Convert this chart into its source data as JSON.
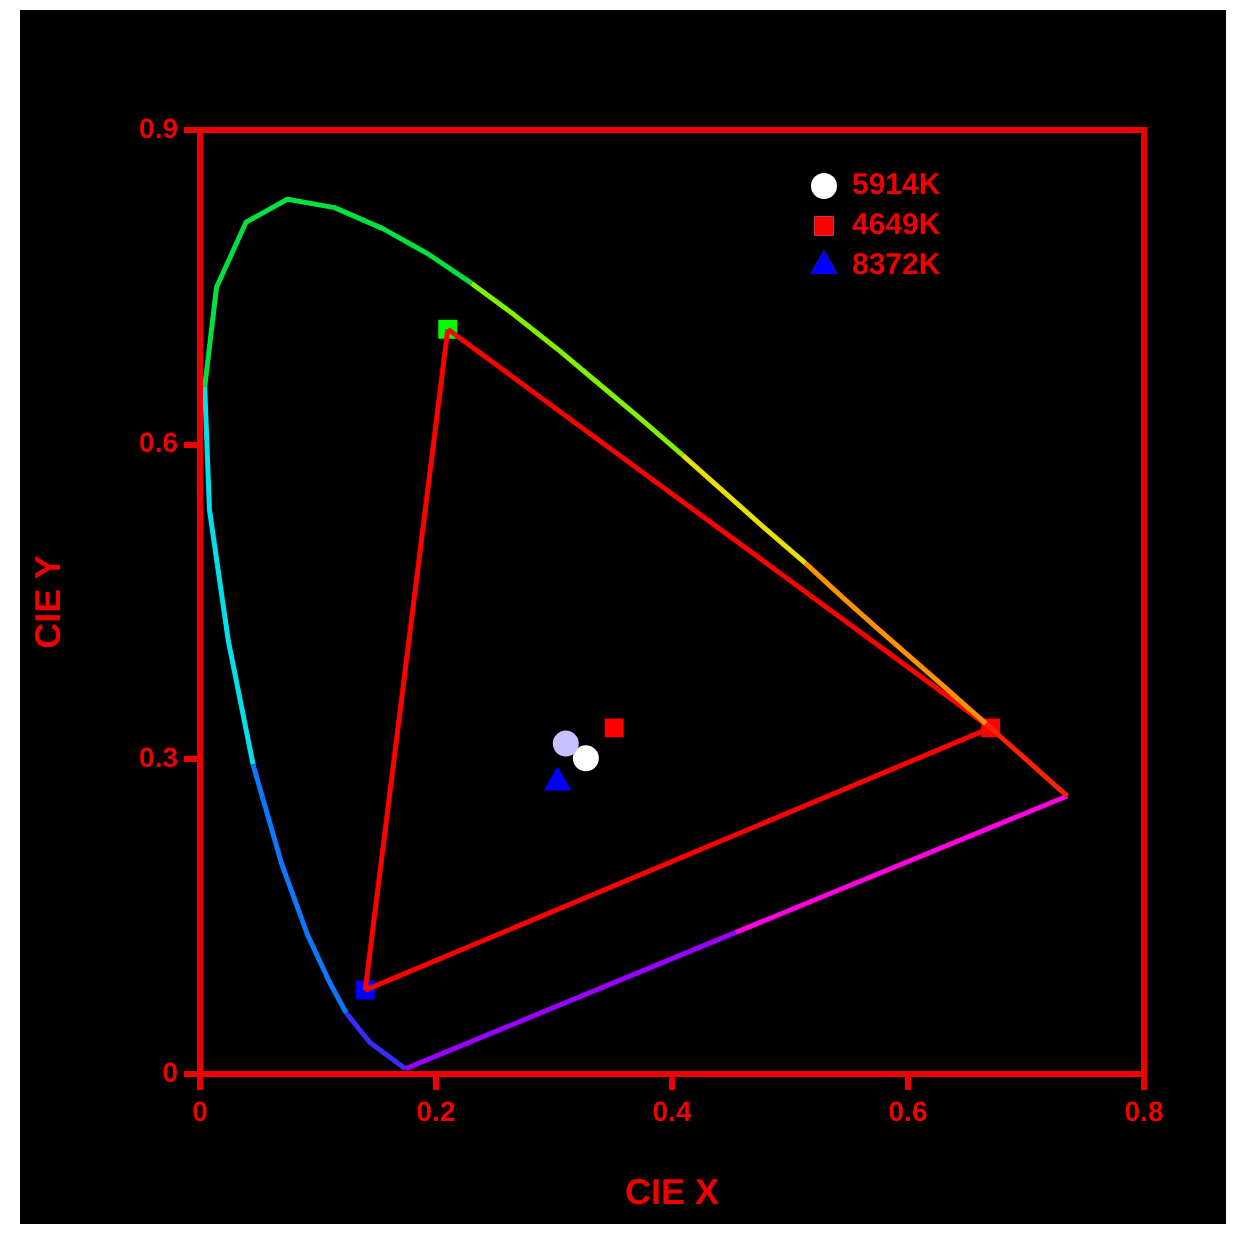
{
  "chart_data": {
    "type": "scatter",
    "xlabel": "CIE X",
    "ylabel": "CIE Y",
    "xlim": [
      0,
      0.8
    ],
    "ylim": [
      0,
      0.9
    ],
    "xticks": [
      0,
      0.2,
      0.4,
      0.6,
      0.8
    ],
    "yticks": [
      0,
      0.3,
      0.6,
      0.9
    ],
    "grid": false,
    "legend": "top right",
    "series": [
      {
        "type": "line",
        "marker": "none",
        "color": "#3a2cff",
        "x": [
          0.174,
          0.144,
          0.124
        ],
        "values": [
          0.005,
          0.03,
          0.058
        ]
      },
      {
        "type": "line",
        "marker": "none",
        "color": "#0a78ff",
        "x": [
          0.124,
          0.11,
          0.091,
          0.069,
          0.045
        ],
        "values": [
          0.058,
          0.087,
          0.133,
          0.201,
          0.295
        ]
      },
      {
        "type": "line",
        "marker": "none",
        "color": "#00e0e8",
        "x": [
          0.045,
          0.024,
          0.008,
          0.004
        ],
        "values": [
          0.295,
          0.413,
          0.538,
          0.655
        ]
      },
      {
        "type": "line",
        "marker": "none",
        "color": "#00e040",
        "x": [
          0.004,
          0.014,
          0.039,
          0.074,
          0.114,
          0.155,
          0.193,
          0.23
        ],
        "values": [
          0.655,
          0.75,
          0.812,
          0.834,
          0.826,
          0.806,
          0.782,
          0.754
        ]
      },
      {
        "type": "line",
        "marker": "none",
        "color": "#80f000",
        "x": [
          0.23,
          0.266,
          0.302,
          0.337,
          0.373,
          0.409
        ],
        "values": [
          0.754,
          0.724,
          0.692,
          0.659,
          0.625,
          0.59
        ]
      },
      {
        "type": "line",
        "marker": "none",
        "color": "#e8e000",
        "x": [
          0.409,
          0.444,
          0.479,
          0.513
        ],
        "values": [
          0.59,
          0.555,
          0.52,
          0.487
        ]
      },
      {
        "type": "line",
        "marker": "none",
        "color": "#ff9000",
        "x": [
          0.513,
          0.545,
          0.575,
          0.627,
          0.666
        ],
        "values": [
          0.487,
          0.454,
          0.424,
          0.373,
          0.334
        ]
      },
      {
        "type": "line",
        "marker": "none",
        "color": "#ff2000",
        "x": [
          0.666,
          0.692,
          0.719,
          0.735
        ],
        "values": [
          0.334,
          0.308,
          0.281,
          0.265
        ]
      },
      {
        "type": "line",
        "marker": "none",
        "color": "#ff00e0",
        "x": [
          0.735,
          0.454
        ],
        "values": [
          0.265,
          0.135
        ]
      },
      {
        "type": "line",
        "marker": "none",
        "color": "#9a00ff",
        "x": [
          0.454,
          0.174
        ],
        "values": [
          0.135,
          0.005
        ]
      },
      {
        "type": "line",
        "marker": "none",
        "color": "#ff0000",
        "x": [
          0.21,
          0.67
        ],
        "values": [
          0.71,
          0.33
        ]
      },
      {
        "type": "line",
        "marker": "none",
        "color": "#ff0000",
        "x": [
          0.14,
          0.67
        ],
        "values": [
          0.08,
          0.33
        ]
      },
      {
        "type": "line",
        "marker": "none",
        "color": "#ff0000",
        "x": [
          0.14,
          0.21
        ],
        "values": [
          0.08,
          0.71
        ]
      },
      {
        "marker": "square",
        "colors": [
          "#00ff00",
          "#ff0000",
          "#0000ff"
        ],
        "x": [
          0.21,
          0.67,
          0.14
        ],
        "values": [
          0.71,
          0.33,
          0.08
        ]
      },
      {
        "marker": "circle",
        "color": "#c8c0ff",
        "x": [
          0.31
        ],
        "values": [
          0.315
        ]
      },
      {
        "name": "5914K",
        "marker": "circle",
        "color": "#ffffff",
        "x": [
          0.327
        ],
        "values": [
          0.301
        ]
      },
      {
        "name": "4649K",
        "marker": "square",
        "color": "#ff0000",
        "x": [
          0.351
        ],
        "values": [
          0.33
        ]
      },
      {
        "name": "8372K",
        "marker": "triangle",
        "color": "#0000ff",
        "x": [
          0.303
        ],
        "values": [
          0.278
        ]
      }
    ]
  }
}
